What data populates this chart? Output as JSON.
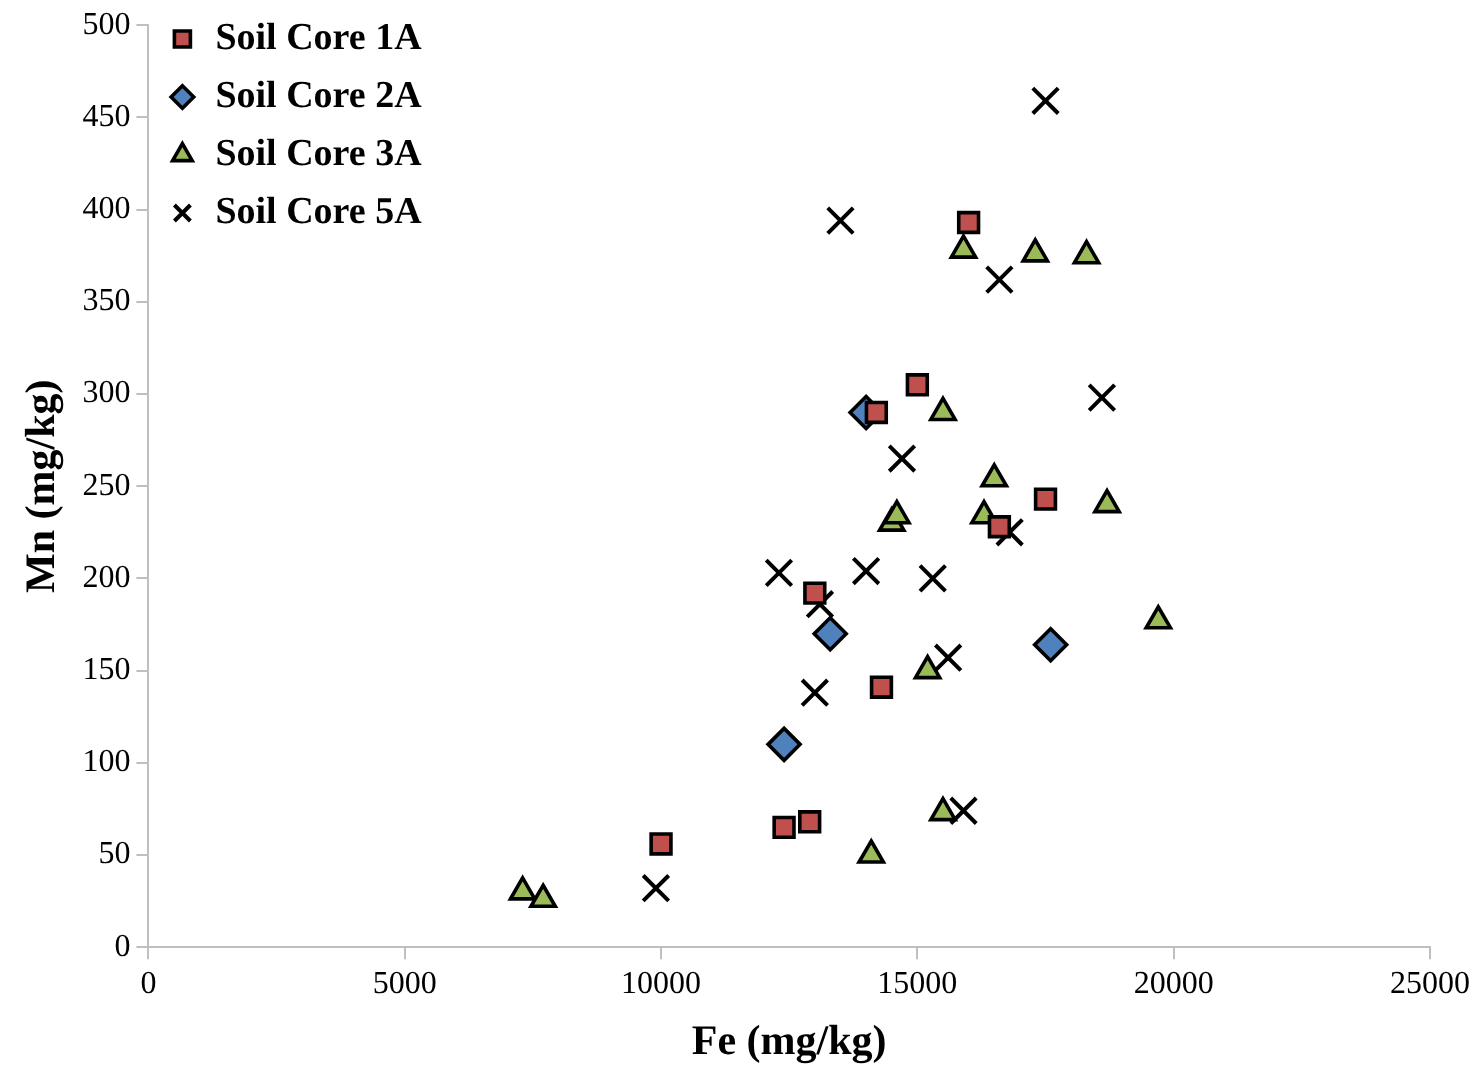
{
  "chart_data": {
    "type": "scatter",
    "xlabel": "Fe (mg/kg)",
    "ylabel": "Mn (mg/kg)",
    "xlim": [
      0,
      25000
    ],
    "xticks": [
      0,
      5000,
      10000,
      15000,
      20000,
      25000
    ],
    "ylim": [
      0,
      500
    ],
    "yticks": [
      0,
      50,
      100,
      150,
      200,
      250,
      300,
      350,
      400,
      450,
      500
    ],
    "grid": false,
    "legend": "top left",
    "series": [
      {
        "name": "Soil Core 1A",
        "color": "#c0504d",
        "marker": "square",
        "x": [
          16000,
          15000,
          14200,
          13000,
          14300,
          16600,
          17500,
          10000,
          12400,
          12900
        ],
        "values": [
          393,
          305,
          290,
          192,
          141,
          228,
          243,
          56,
          65,
          68
        ]
      },
      {
        "name": "Soil Core 2A",
        "color": "#4f81bd",
        "marker": "diamond",
        "x": [
          14000,
          13300,
          12400,
          17600
        ],
        "values": [
          290,
          170,
          110,
          164
        ]
      },
      {
        "name": "Soil Core 3A",
        "color": "#9bbb59",
        "marker": "triangle",
        "x": [
          15900,
          17300,
          18300,
          15500,
          14500,
          14600,
          16500,
          16300,
          18700,
          19700,
          15200,
          15500,
          14100,
          7300,
          7700
        ],
        "values": [
          378,
          376,
          375,
          290,
          230,
          234,
          254,
          234,
          240,
          177,
          150,
          73,
          50,
          30,
          26
        ]
      },
      {
        "name": "Soil Core 5A",
        "color": "#000000",
        "marker": "cross",
        "x": [
          17500,
          13500,
          16600,
          18600,
          14700,
          16800,
          12300,
          14000,
          15300,
          13100,
          13000,
          15600,
          15900,
          9900
        ],
        "values": [
          459,
          394,
          362,
          298,
          265,
          225,
          203,
          204,
          200,
          186,
          138,
          157,
          74,
          32
        ]
      }
    ]
  }
}
